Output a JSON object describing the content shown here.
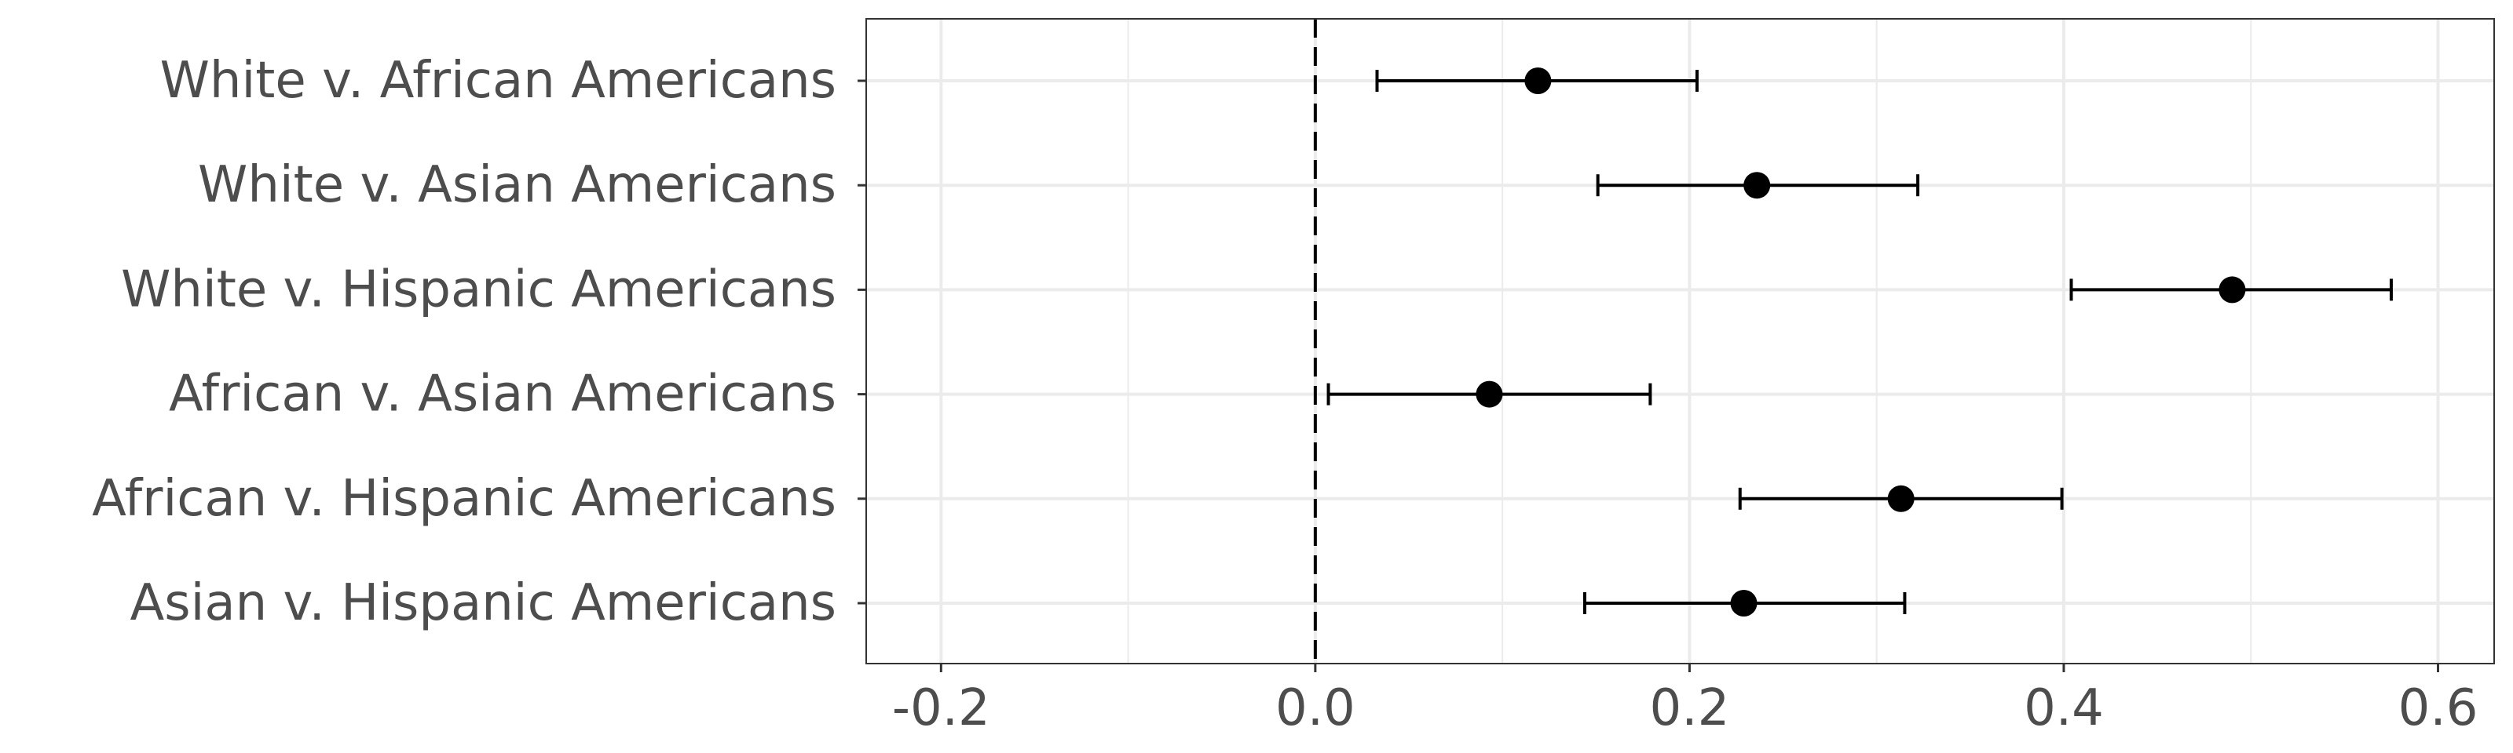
{
  "chart_data": {
    "type": "scatter",
    "subtype": "coefficient-plot-with-error-bars",
    "title": "",
    "xlabel": "",
    "ylabel": "",
    "xlim": [
      -0.24,
      0.63
    ],
    "x_ticks": [
      -0.2,
      0.0,
      0.2,
      0.4,
      0.6
    ],
    "x_tick_labels": [
      "-0.2",
      "0.0",
      "0.2",
      "0.4",
      "0.6"
    ],
    "reference_line": {
      "x": 0.0,
      "style": "dashed"
    },
    "grid": true,
    "categories": [
      "White v. African Americans",
      "White v. Asian Americans",
      "White v. Hispanic Americans",
      "African v. Asian Americans",
      "African v. Hispanic Americans",
      "Asian v. Hispanic Americans"
    ],
    "points": [
      {
        "label": "White v. African Americans",
        "estimate": 0.119,
        "lower": 0.033,
        "upper": 0.204
      },
      {
        "label": "White v. Asian Americans",
        "estimate": 0.236,
        "lower": 0.151,
        "upper": 0.322
      },
      {
        "label": "White v. Hispanic Americans",
        "estimate": 0.49,
        "lower": 0.404,
        "upper": 0.575
      },
      {
        "label": "African v. Asian Americans",
        "estimate": 0.093,
        "lower": 0.007,
        "upper": 0.179
      },
      {
        "label": "African v. Hispanic Americans",
        "estimate": 0.313,
        "lower": 0.227,
        "upper": 0.399
      },
      {
        "label": "Asian v. Hispanic Americans",
        "estimate": 0.229,
        "lower": 0.144,
        "upper": 0.315
      }
    ],
    "colors": {
      "points": "#000000",
      "grid": "#ebebeb",
      "panel_border": "#333333",
      "text": "#4d4d4d"
    }
  }
}
